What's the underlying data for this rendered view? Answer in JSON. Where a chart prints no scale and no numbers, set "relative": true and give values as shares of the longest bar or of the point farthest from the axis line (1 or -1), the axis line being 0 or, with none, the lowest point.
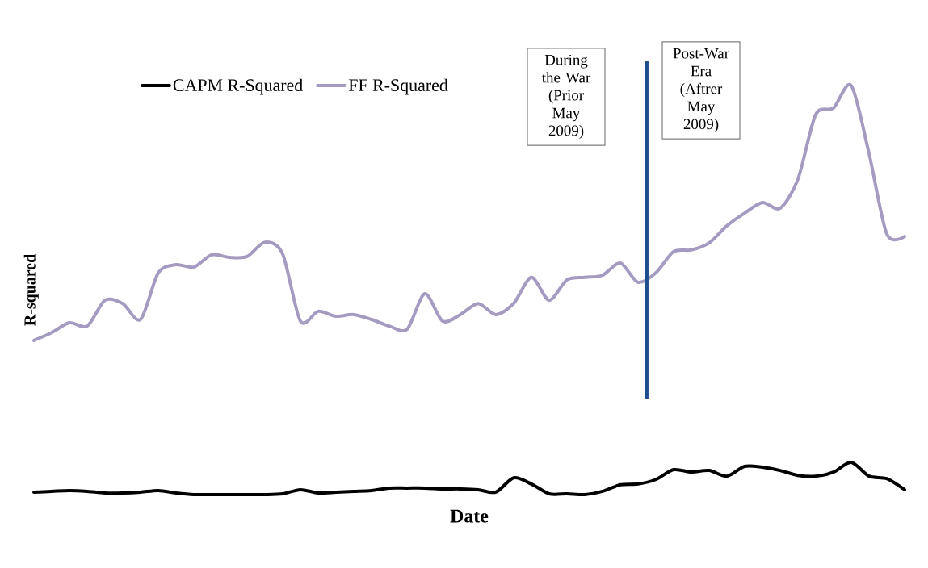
{
  "chart_data": {
    "type": "line",
    "relative": true,
    "xlabel": "Date",
    "ylabel": "R-squared",
    "legend": "top",
    "marker": "none",
    "line_style": "solid",
    "categories": [
      null,
      null,
      null,
      null,
      null,
      null,
      null,
      null,
      null,
      null,
      null,
      null,
      null,
      null,
      null,
      null,
      null,
      null,
      null,
      null,
      null,
      null,
      null,
      null,
      null,
      null,
      null,
      null,
      null,
      null,
      null,
      null,
      null,
      null,
      null,
      null,
      null,
      null,
      null,
      null,
      null,
      null,
      null,
      null,
      null,
      null,
      null,
      null,
      null,
      null
    ],
    "series": [
      {
        "name": "CAPM R-Squared",
        "color": "#000000",
        "values": [
          0.006,
          0.008,
          0.01,
          0.008,
          0.004,
          0.004,
          0.006,
          0.01,
          0.004,
          0,
          0,
          0,
          0,
          0,
          0.002,
          0.012,
          0.004,
          0.006,
          0.008,
          0.01,
          0.016,
          0.016,
          0.016,
          0.014,
          0.014,
          0.012,
          0.006,
          0.041,
          0.026,
          0.002,
          0.002,
          0,
          0.008,
          0.024,
          0.026,
          0.037,
          0.061,
          0.055,
          0.059,
          0.045,
          0.069,
          0.067,
          0.059,
          0.047,
          0.045,
          0.055,
          0.079,
          0.045,
          0.039,
          0.012
        ]
      },
      {
        "name": "FF R-Squared",
        "color": "#a59bc0",
        "values": [
          0.377,
          0.396,
          0.42,
          0.412,
          0.475,
          0.467,
          0.428,
          0.542,
          0.562,
          0.556,
          0.586,
          0.58,
          0.582,
          0.617,
          0.588,
          0.424,
          0.448,
          0.436,
          0.44,
          0.428,
          0.412,
          0.404,
          0.491,
          0.424,
          0.44,
          0.467,
          0.44,
          0.467,
          0.531,
          0.475,
          0.525,
          0.531,
          0.536,
          0.566,
          0.519,
          0.542,
          0.594,
          0.598,
          0.615,
          0.657,
          0.688,
          0.714,
          0.7,
          0.771,
          0.929,
          0.945,
          1.0,
          0.834,
          0.637,
          0.631
        ]
      }
    ],
    "annotations": [
      "During the War (Prior May 2009)",
      "Post-War Era (Aftrer May 2009)"
    ]
  }
}
